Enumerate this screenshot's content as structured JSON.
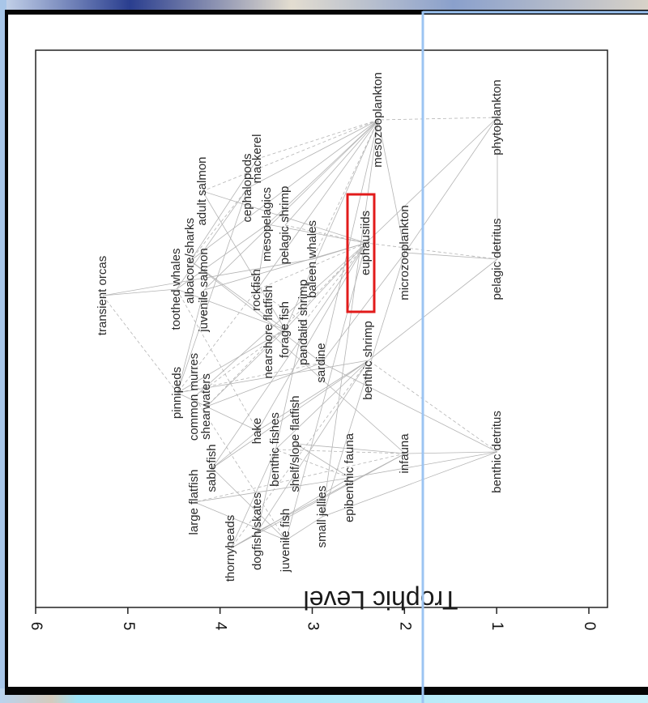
{
  "chart_data": {
    "type": "scatter",
    "title": "",
    "xlabel": "",
    "ylabel": "Trophic Level",
    "ylim": [
      0,
      6
    ],
    "y_ticks": [
      "0",
      "1",
      "2",
      "3",
      "4",
      "5",
      "6"
    ],
    "grid": false,
    "legend": "none",
    "orientation": "rotated 90 degrees clockwise (trophic axis runs along the bottom)",
    "series": [
      {
        "values": [
          {
            "label": "transient orcas",
            "y": 5.3
          },
          {
            "label": "toothed whales",
            "y": 4.5
          },
          {
            "label": "albacore/sharks",
            "y": 4.4
          },
          {
            "label": "adult salmon",
            "y": 4.2
          },
          {
            "label": "juvenile salmon",
            "y": 4.2
          },
          {
            "label": "pinnipeds",
            "y": 4.5
          },
          {
            "label": "common murres",
            "y": 4.3
          },
          {
            "label": "shearwaters",
            "y": 4.2
          },
          {
            "label": "large flatfish",
            "y": 4.3
          },
          {
            "label": "sablefish",
            "y": 4.1
          },
          {
            "label": "thornyheads",
            "y": 3.9
          },
          {
            "label": "dogfish/skates",
            "y": 3.6
          },
          {
            "label": "juvenile fish",
            "y": 3.3
          },
          {
            "label": "small jellies",
            "y": 3.0
          },
          {
            "label": "epibenthic fauna",
            "y": 2.6
          },
          {
            "label": "infauna",
            "y": 2.0
          },
          {
            "label": "benthic detritus",
            "y": 1.0
          },
          {
            "label": "hake",
            "y": 3.7
          },
          {
            "label": "benthic fishes",
            "y": 3.5
          },
          {
            "label": "shelf/slope flatfish",
            "y": 3.3
          },
          {
            "label": "sardine",
            "y": 2.9
          },
          {
            "label": "benthic shrimp",
            "y": 2.4
          },
          {
            "label": "nearshore flatfish",
            "y": 3.5
          },
          {
            "label": "forage fish",
            "y": 3.3
          },
          {
            "label": "pandalid shrimp",
            "y": 3.1
          },
          {
            "label": "rockfish",
            "y": 3.6
          },
          {
            "label": "mesopelagics",
            "y": 3.5
          },
          {
            "label": "pelagic shrimp",
            "y": 3.3
          },
          {
            "label": "baleen whales",
            "y": 3.0
          },
          {
            "label": "cephalopods",
            "y": 3.7
          },
          {
            "label": "mackerel",
            "y": 3.5
          },
          {
            "label": "mesozooplankton",
            "y": 2.2
          },
          {
            "label": "euphausiids",
            "y": 2.4
          },
          {
            "label": "microzooplankton",
            "y": 2.0
          },
          {
            "label": "phytoplankton",
            "y": 1.0
          },
          {
            "label": "pelagic detritus",
            "y": 1.0
          }
        ]
      }
    ]
  },
  "annotations": {
    "highlight_label": "euphausiids",
    "highlight_color": "#e21b1b",
    "guide_line_color": "#9cc4f2"
  }
}
